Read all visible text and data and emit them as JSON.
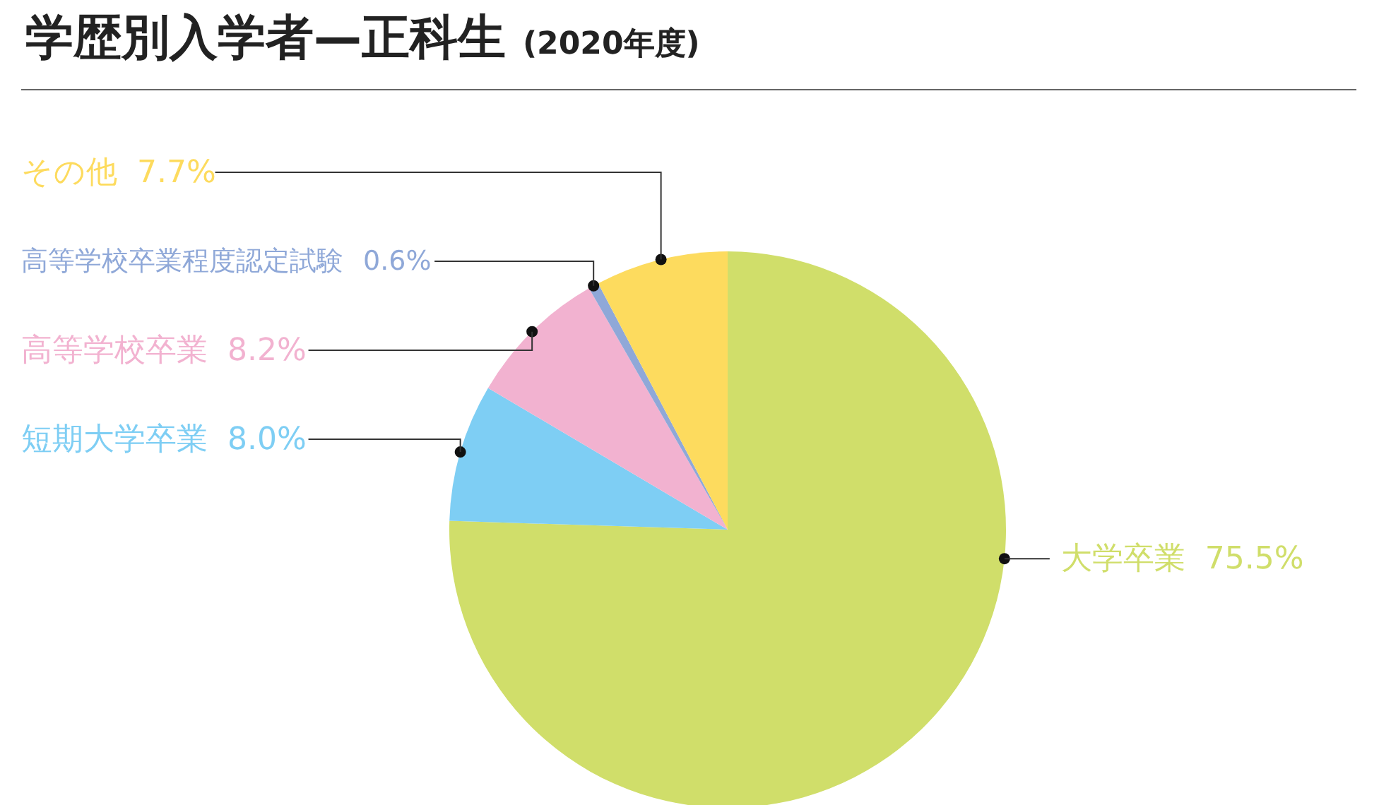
{
  "chart_data": {
    "type": "pie",
    "title": "学歴別入学者—正科生",
    "subtitle": "(2020年度)",
    "categories": [
      "大学卒業",
      "短期大学卒業",
      "高等学校卒業",
      "高等学校卒業程度認定試験",
      "その他"
    ],
    "values": [
      75.5,
      8.0,
      8.2,
      0.6,
      7.7
    ],
    "value_labels": [
      "75.5%",
      "8.0%",
      "8.2%",
      "0.6%",
      "7.7%"
    ],
    "colors": [
      "#d0de6a",
      "#7ecef4",
      "#f2b2d0",
      "#8fa8d8",
      "#fddb5e"
    ],
    "legend": false
  }
}
